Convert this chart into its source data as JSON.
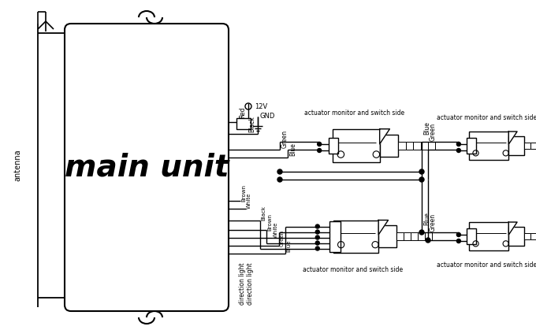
{
  "bg_color": "#ffffff",
  "lc": "#000000",
  "main_unit_label": "main unit",
  "antenna_label": "antenna",
  "actuator_label": "actuator monitor and switch side",
  "12v_label": "12V",
  "gnd_label": "GND",
  "top_wire_names": [
    "Red",
    "Black",
    "Green",
    "Blue"
  ],
  "bot_wire_names": [
    "Brown",
    "White",
    "Black",
    "Brown",
    "White",
    "Green",
    "Blue"
  ],
  "dir_labels": [
    "direction light",
    "direction light"
  ],
  "right_wire_labels_top": [
    "Blue",
    "Green"
  ],
  "right_wire_labels_bot": [
    "Blue",
    "Green"
  ]
}
